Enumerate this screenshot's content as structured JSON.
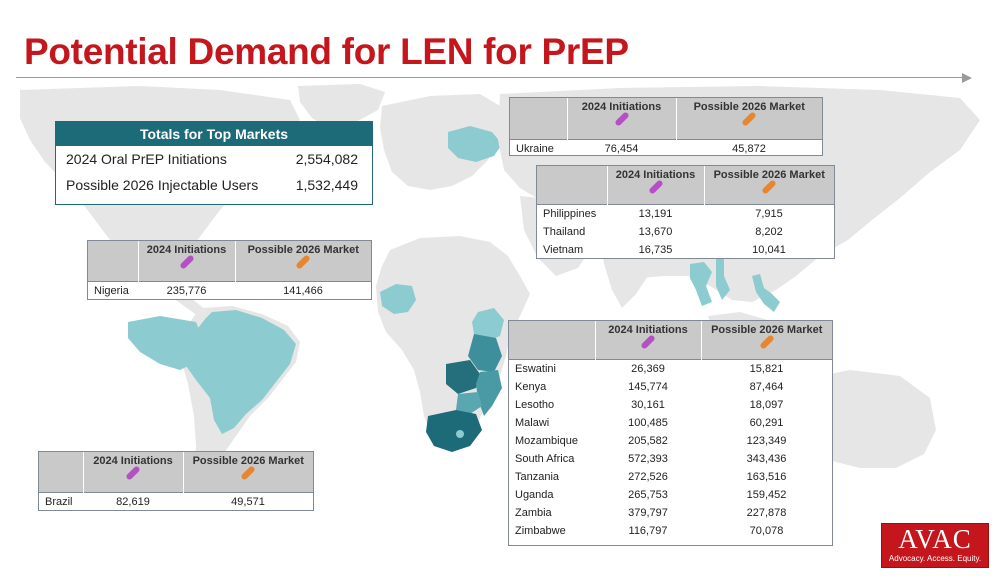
{
  "title": "Potential Demand for LEN for PrEP",
  "headers": {
    "col1": "2024 Initiations",
    "col2": "Possible 2026 Market"
  },
  "totals": {
    "header": "Totals for Top Markets",
    "rows": [
      {
        "label": "2024 Oral PrEP Initiations",
        "value": "2,554,082"
      },
      {
        "label": "Possible 2026 Injectable Users",
        "value": "1,532,449"
      }
    ]
  },
  "markets": {
    "ukraine": [
      {
        "country": "Ukraine",
        "initiations": "76,454",
        "market": "45,872"
      }
    ],
    "asia": [
      {
        "country": "Philippines",
        "initiations": "13,191",
        "market": "7,915"
      },
      {
        "country": "Thailand",
        "initiations": "13,670",
        "market": "8,202"
      },
      {
        "country": "Vietnam",
        "initiations": "16,735",
        "market": "10,041"
      }
    ],
    "nigeria": [
      {
        "country": "Nigeria",
        "initiations": "235,776",
        "market": "141,466"
      }
    ],
    "brazil": [
      {
        "country": "Brazil",
        "initiations": "82,619",
        "market": "49,571"
      }
    ],
    "africa": [
      {
        "country": "Eswatini",
        "initiations": "26,369",
        "market": "15,821"
      },
      {
        "country": "Kenya",
        "initiations": "145,774",
        "market": "87,464"
      },
      {
        "country": "Lesotho",
        "initiations": "30,161",
        "market": "18,097"
      },
      {
        "country": "Malawi",
        "initiations": "100,485",
        "market": "60,291"
      },
      {
        "country": "Mozambique",
        "initiations": "205,582",
        "market": "123,349"
      },
      {
        "country": "South Africa",
        "initiations": "572,393",
        "market": "343,436"
      },
      {
        "country": "Tanzania",
        "initiations": "272,526",
        "market": "163,516"
      },
      {
        "country": "Uganda",
        "initiations": "265,753",
        "market": "159,452"
      },
      {
        "country": "Zambia",
        "initiations": "379,797",
        "market": "227,878"
      },
      {
        "country": "Zimbabwe",
        "initiations": "116,797",
        "market": "70,078"
      }
    ]
  },
  "logo": {
    "name": "AVAC",
    "tagline": "Advocacy. Access. Equity."
  },
  "colors": {
    "title": "#c4161c",
    "teal_dark": "#1d6a78",
    "teal_light": "#8ccbd0",
    "map_gray": "#e6e6e6",
    "pill_purple": "#b44fc4",
    "pill_orange": "#e7862e"
  }
}
